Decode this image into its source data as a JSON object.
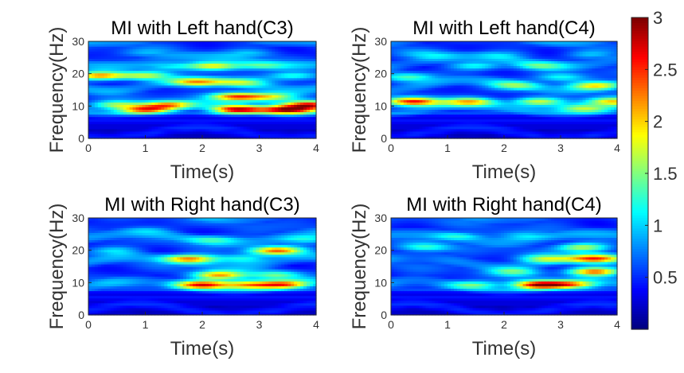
{
  "chart_data": [
    {
      "type": "heatmap",
      "title": "MI with Left hand(C3)",
      "xlabel": "Time(s)",
      "ylabel": "Frequency(Hz)",
      "xlim": [
        0,
        4
      ],
      "ylim": [
        0,
        30
      ],
      "xticks": [
        "0",
        "1",
        "2",
        "3",
        "4"
      ],
      "yticks": [
        "0",
        "10",
        "20",
        "30"
      ],
      "bands": [
        {
          "freq": 9,
          "peaks": [
            {
              "t": 1.0,
              "v": 2.4
            },
            {
              "t": 2.6,
              "v": 2.8
            },
            {
              "t": 3.5,
              "v": 3.0
            }
          ]
        },
        {
          "freq": 10.5,
          "peaks": [
            {
              "t": 0.5,
              "v": 1.9
            },
            {
              "t": 1.4,
              "v": 2.2
            },
            {
              "t": 3.9,
              "v": 2.9
            }
          ]
        },
        {
          "freq": 13,
          "peaks": [
            {
              "t": 2.6,
              "v": 2.7
            },
            {
              "t": 3.2,
              "v": 2.0
            }
          ]
        },
        {
          "freq": 17.5,
          "peaks": [
            {
              "t": 1.9,
              "v": 2.3
            },
            {
              "t": 2.7,
              "v": 1.6
            }
          ]
        },
        {
          "freq": 19.5,
          "peaks": [
            {
              "t": 0.2,
              "v": 2.5
            },
            {
              "t": 1.0,
              "v": 1.8
            },
            {
              "t": 3.6,
              "v": 1.6
            }
          ]
        },
        {
          "freq": 22.5,
          "peaks": [
            {
              "t": 2.2,
              "v": 2.1
            },
            {
              "t": 3.0,
              "v": 1.5
            },
            {
              "t": 1.4,
              "v": 1.4
            }
          ]
        },
        {
          "freq": 26.5,
          "peaks": [
            {
              "t": 1.0,
              "v": 1.1
            },
            {
              "t": 2.8,
              "v": 1.2
            }
          ]
        }
      ]
    },
    {
      "type": "heatmap",
      "title": "MI with Left hand(C4)",
      "xlabel": "Time(s)",
      "ylabel": "Frequency(Hz)",
      "xlim": [
        0,
        4
      ],
      "ylim": [
        0,
        30
      ],
      "xticks": [
        "0",
        "1",
        "2",
        "3",
        "4"
      ],
      "yticks": [
        "0",
        "10",
        "20",
        "30"
      ],
      "bands": [
        {
          "freq": 11.5,
          "peaks": [
            {
              "t": 0.4,
              "v": 2.9
            },
            {
              "t": 1.4,
              "v": 2.1
            },
            {
              "t": 2.6,
              "v": 2.0
            },
            {
              "t": 3.9,
              "v": 2.3
            }
          ]
        },
        {
          "freq": 9.5,
          "peaks": [
            {
              "t": 3.4,
              "v": 1.9
            }
          ]
        },
        {
          "freq": 16.5,
          "peaks": [
            {
              "t": 3.6,
              "v": 2.0
            },
            {
              "t": 2.2,
              "v": 1.5
            }
          ]
        },
        {
          "freq": 19,
          "peaks": [
            {
              "t": 0.3,
              "v": 1.5
            },
            {
              "t": 3.0,
              "v": 1.5
            }
          ]
        },
        {
          "freq": 22.5,
          "peaks": [
            {
              "t": 1.5,
              "v": 1.4
            },
            {
              "t": 2.6,
              "v": 1.4
            }
          ]
        },
        {
          "freq": 26,
          "peaks": [
            {
              "t": 0.7,
              "v": 1.2
            },
            {
              "t": 2.0,
              "v": 1.1
            },
            {
              "t": 3.5,
              "v": 1.2
            }
          ]
        }
      ]
    },
    {
      "type": "heatmap",
      "title": "MI with Right hand(C3)",
      "xlabel": "Time(s)",
      "ylabel": "Frequency(Hz)",
      "xlim": [
        0,
        4
      ],
      "ylim": [
        0,
        30
      ],
      "xticks": [
        "0",
        "1",
        "2",
        "3",
        "4"
      ],
      "yticks": [
        "0",
        "10",
        "20",
        "30"
      ],
      "bands": [
        {
          "freq": 9.5,
          "peaks": [
            {
              "t": 2.0,
              "v": 2.7
            },
            {
              "t": 2.8,
              "v": 2.3
            },
            {
              "t": 3.4,
              "v": 2.4
            }
          ]
        },
        {
          "freq": 12.5,
          "peaks": [
            {
              "t": 2.3,
              "v": 2.4
            },
            {
              "t": 3.3,
              "v": 1.6
            }
          ]
        },
        {
          "freq": 17.5,
          "peaks": [
            {
              "t": 1.8,
              "v": 2.4
            },
            {
              "t": 2.7,
              "v": 1.5
            }
          ]
        },
        {
          "freq": 20,
          "peaks": [
            {
              "t": 3.3,
              "v": 2.5
            },
            {
              "t": 0.5,
              "v": 1.3
            }
          ]
        },
        {
          "freq": 23.5,
          "peaks": [
            {
              "t": 2.2,
              "v": 1.4
            },
            {
              "t": 3.8,
              "v": 1.5
            }
          ]
        },
        {
          "freq": 26.5,
          "peaks": [
            {
              "t": 1.0,
              "v": 1.1
            }
          ]
        }
      ]
    },
    {
      "type": "heatmap",
      "title": "MI with Right hand(C4)",
      "xlabel": "Time(s)",
      "ylabel": "Frequency(Hz)",
      "xlim": [
        0,
        4
      ],
      "ylim": [
        0,
        30
      ],
      "xticks": [
        "0",
        "1",
        "2",
        "3",
        "4"
      ],
      "yticks": [
        "0",
        "10",
        "20",
        "30"
      ],
      "bands": [
        {
          "freq": 9.5,
          "peaks": [
            {
              "t": 2.6,
              "v": 2.9
            },
            {
              "t": 3.2,
              "v": 2.1
            },
            {
              "t": 1.5,
              "v": 1.6
            }
          ]
        },
        {
          "freq": 13.5,
          "peaks": [
            {
              "t": 3.6,
              "v": 2.6
            },
            {
              "t": 2.2,
              "v": 1.6
            }
          ]
        },
        {
          "freq": 17.5,
          "peaks": [
            {
              "t": 3.6,
              "v": 2.6
            },
            {
              "t": 2.7,
              "v": 1.8
            }
          ]
        },
        {
          "freq": 21,
          "peaks": [
            {
              "t": 3.4,
              "v": 2.0
            },
            {
              "t": 0.6,
              "v": 1.5
            }
          ]
        },
        {
          "freq": 24.5,
          "peaks": [
            {
              "t": 1.2,
              "v": 1.4
            },
            {
              "t": 2.4,
              "v": 1.3
            }
          ]
        }
      ]
    }
  ],
  "colorbar": {
    "colormap": "jet",
    "range": [
      0,
      3
    ],
    "ticks": [
      "0.5",
      "1",
      "1.5",
      "2",
      "2.5",
      "3"
    ],
    "tick_values": [
      0.5,
      1,
      1.5,
      2,
      2.5,
      3
    ]
  }
}
